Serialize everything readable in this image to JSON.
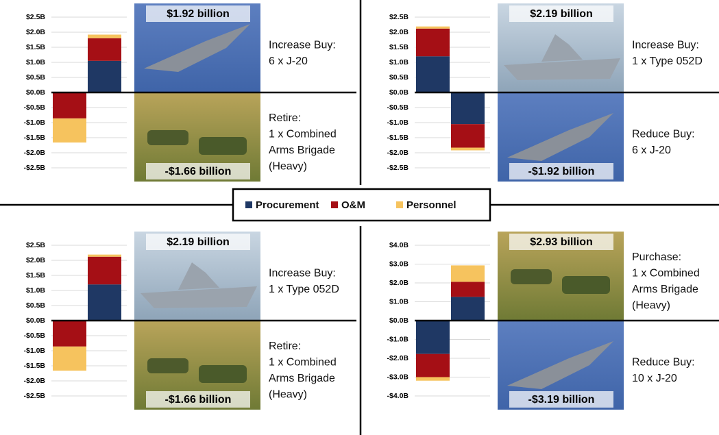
{
  "chart_data": [
    {
      "type": "bar",
      "stacked": true,
      "grid": true,
      "categories": [
        null,
        null
      ],
      "ylim": [
        -2.5,
        2.5
      ],
      "yticks": [
        {
          "value": 2.5,
          "label": "$2.5B"
        },
        {
          "value": 2.0,
          "label": "$2.0B"
        },
        {
          "value": 1.5,
          "label": "$1.5B"
        },
        {
          "value": 1.0,
          "label": "$1.0B"
        },
        {
          "value": 0.5,
          "label": "$0.5B"
        },
        {
          "value": 0,
          "label": "$0.0B"
        },
        {
          "value": -0.5,
          "label": "-$0.5B"
        },
        {
          "value": -1.0,
          "label": "-$1.0B"
        },
        {
          "value": -1.5,
          "label": "-$1.5B"
        },
        {
          "value": -2.0,
          "label": "-$2.0B"
        },
        {
          "value": -2.5,
          "label": "-$2.5B"
        }
      ],
      "series": [
        {
          "name": "Procurement",
          "color": "#1f3864",
          "values": [
            0,
            1.05
          ]
        },
        {
          "name": "O&M",
          "color": "#a50f15",
          "values": [
            -0.86,
            0.75
          ]
        },
        {
          "name": "Personnel",
          "color": "#f6c35e",
          "values": [
            -0.8,
            0.12
          ]
        }
      ],
      "annotations": [
        "$1.92 billion",
        "-$1.66 billion"
      ],
      "notes": [
        [
          "Increase Buy:",
          "6 x J-20"
        ],
        [
          "Retire:",
          "1 x Combined",
          "Arms Brigade",
          "(Heavy)"
        ]
      ]
    },
    {
      "type": "bar",
      "stacked": true,
      "grid": true,
      "categories": [
        null,
        null
      ],
      "ylim": [
        -2.5,
        2.5
      ],
      "yticks": [
        {
          "value": 2.5,
          "label": "$2.5B"
        },
        {
          "value": 2.0,
          "label": "$2.0B"
        },
        {
          "value": 1.5,
          "label": "$1.5B"
        },
        {
          "value": 1.0,
          "label": "$1.0B"
        },
        {
          "value": 0.5,
          "label": "$0.5B"
        },
        {
          "value": 0,
          "label": "$0.0B"
        },
        {
          "value": -0.5,
          "label": "-$0.5B"
        },
        {
          "value": -1.0,
          "label": "-$1.0B"
        },
        {
          "value": -1.5,
          "label": "-$1.5B"
        },
        {
          "value": -2.0,
          "label": "-$2.0B"
        },
        {
          "value": -2.5,
          "label": "-$2.5B"
        }
      ],
      "series": [
        {
          "name": "Procurement",
          "color": "#1f3864",
          "values": [
            1.2,
            -1.05
          ]
        },
        {
          "name": "O&M",
          "color": "#a50f15",
          "values": [
            0.92,
            -0.78
          ]
        },
        {
          "name": "Personnel",
          "color": "#f6c35e",
          "values": [
            0.07,
            -0.09
          ]
        }
      ],
      "annotations": [
        "$2.19 billion",
        "-$1.92 billion"
      ],
      "notes": [
        [
          "Increase Buy:",
          "1 x Type 052D"
        ],
        [
          "Reduce Buy:",
          "6 x J-20"
        ]
      ]
    },
    {
      "type": "bar",
      "stacked": true,
      "grid": true,
      "categories": [
        null,
        null
      ],
      "ylim": [
        -2.5,
        2.5
      ],
      "yticks": [
        {
          "value": 2.5,
          "label": "$2.5B"
        },
        {
          "value": 2.0,
          "label": "$2.0B"
        },
        {
          "value": 1.5,
          "label": "$1.5B"
        },
        {
          "value": 1.0,
          "label": "$1.0B"
        },
        {
          "value": 0.5,
          "label": "$0.5B"
        },
        {
          "value": 0,
          "label": "$0.0B"
        },
        {
          "value": -0.5,
          "label": "-$0.5B"
        },
        {
          "value": -1.0,
          "label": "-$1.0B"
        },
        {
          "value": -1.5,
          "label": "-$1.5B"
        },
        {
          "value": -2.0,
          "label": "-$2.0B"
        },
        {
          "value": -2.5,
          "label": "-$2.5B"
        }
      ],
      "series": [
        {
          "name": "Procurement",
          "color": "#1f3864",
          "values": [
            0,
            1.2
          ]
        },
        {
          "name": "O&M",
          "color": "#a50f15",
          "values": [
            -0.86,
            0.92
          ]
        },
        {
          "name": "Personnel",
          "color": "#f6c35e",
          "values": [
            -0.8,
            0.07
          ]
        }
      ],
      "annotations": [
        "$2.19 billion",
        "-$1.66 billion"
      ],
      "notes": [
        [
          "Increase Buy:",
          "1 x Type 052D"
        ],
        [
          "Retire:",
          "1 x Combined",
          "Arms Brigade",
          "(Heavy)"
        ]
      ]
    },
    {
      "type": "bar",
      "stacked": true,
      "grid": true,
      "categories": [
        null,
        null
      ],
      "ylim": [
        -4,
        4
      ],
      "yticks": [
        {
          "value": 4,
          "label": "$4.0B"
        },
        {
          "value": 3,
          "label": "$3.0B"
        },
        {
          "value": 2,
          "label": "$2.0B"
        },
        {
          "value": 1,
          "label": "$1.0B"
        },
        {
          "value": 0,
          "label": "$0.0B"
        },
        {
          "value": -1,
          "label": "-$1.0B"
        },
        {
          "value": -2,
          "label": "-$2.0B"
        },
        {
          "value": -3,
          "label": "-$3.0B"
        },
        {
          "value": -4,
          "label": "-$4.0B"
        }
      ],
      "series": [
        {
          "name": "Procurement",
          "color": "#1f3864",
          "values": [
            -1.77,
            1.26
          ]
        },
        {
          "name": "O&M",
          "color": "#a50f15",
          "values": [
            -1.23,
            0.8
          ]
        },
        {
          "name": "Personnel",
          "color": "#f6c35e",
          "values": [
            -0.19,
            0.87
          ]
        }
      ],
      "annotations": [
        "$2.93 billion",
        "-$3.19 billion"
      ],
      "notes": [
        [
          "Purchase:",
          "1 x Combined",
          "Arms Brigade",
          "(Heavy)"
        ],
        [
          "Reduce Buy:",
          "10 x J-20"
        ]
      ]
    }
  ]
}
